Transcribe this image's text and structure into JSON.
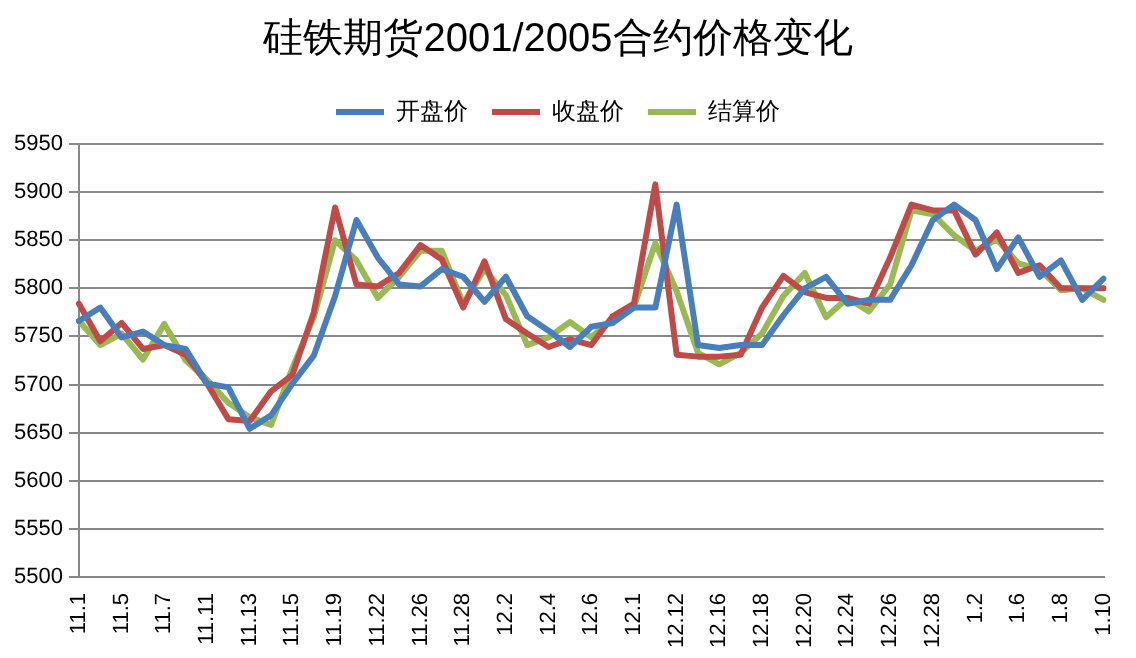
{
  "chart_data": {
    "type": "line",
    "title": "硅铁期货2001/2005合约价格变化",
    "categories": [
      "11.1",
      null,
      "11.5",
      null,
      "11.7",
      null,
      "11.11",
      null,
      "11.13",
      null,
      "11.15",
      null,
      "11.19",
      null,
      "11.22",
      null,
      "11.26",
      null,
      "11.28",
      null,
      "12.2",
      null,
      "12.4",
      null,
      "12.6",
      null,
      "12.1",
      null,
      "12.12",
      null,
      "12.16",
      null,
      "12.18",
      null,
      "12.20",
      null,
      "12.24",
      null,
      "12.26",
      null,
      "12.28",
      null,
      "1.2",
      null,
      "1.6",
      null,
      "1.8",
      null,
      "1.10"
    ],
    "series": [
      {
        "name": "开盘价",
        "color": "#4a7ebb",
        "values": [
          5766,
          5780,
          5749,
          5755,
          5741,
          5737,
          5701,
          5697,
          5654,
          5668,
          5701,
          5730,
          5792,
          5871,
          5832,
          5804,
          5802,
          5820,
          5812,
          5786,
          5812,
          5771,
          5756,
          5739,
          5760,
          5764,
          5780,
          5780,
          5887,
          5741,
          5738,
          5741,
          5741,
          5772,
          5800,
          5812,
          5784,
          5788,
          5788,
          5824,
          5871,
          5887,
          5871,
          5820,
          5853,
          5812,
          5829,
          5788,
          5810
        ]
      },
      {
        "name": "收盘价",
        "color": "#be4b48",
        "values": [
          5784,
          5745,
          5764,
          5737,
          5741,
          5731,
          5701,
          5664,
          5662,
          5693,
          5710,
          5775,
          5884,
          5804,
          5802,
          5816,
          5845,
          5830,
          5780,
          5828,
          5768,
          5753,
          5739,
          5747,
          5741,
          5771,
          5784,
          5908,
          5731,
          5729,
          5729,
          5731,
          5780,
          5813,
          5796,
          5790,
          5790,
          5784,
          5832,
          5887,
          5881,
          5881,
          5835,
          5858,
          5816,
          5824,
          5800,
          5800,
          5800
        ]
      },
      {
        "name": "结算价",
        "color": "#98b954",
        "values": [
          5766,
          5741,
          5753,
          5726,
          5763,
          5725,
          5705,
          5681,
          5666,
          5658,
          5717,
          5770,
          5850,
          5829,
          5790,
          5812,
          5839,
          5839,
          5784,
          5820,
          5793,
          5741,
          5749,
          5765,
          5749,
          5768,
          5781,
          5847,
          5797,
          5733,
          5721,
          5733,
          5753,
          5792,
          5816,
          5770,
          5790,
          5776,
          5804,
          5881,
          5877,
          5855,
          5839,
          5851,
          5826,
          5820,
          5798,
          5800,
          5788
        ]
      }
    ],
    "ylim": [
      5500,
      5950
    ],
    "yticks": [
      5500,
      5550,
      5600,
      5650,
      5700,
      5750,
      5800,
      5850,
      5900,
      5950
    ],
    "grid": "y",
    "legend": "top",
    "marker": "none",
    "line_style": "solid"
  }
}
